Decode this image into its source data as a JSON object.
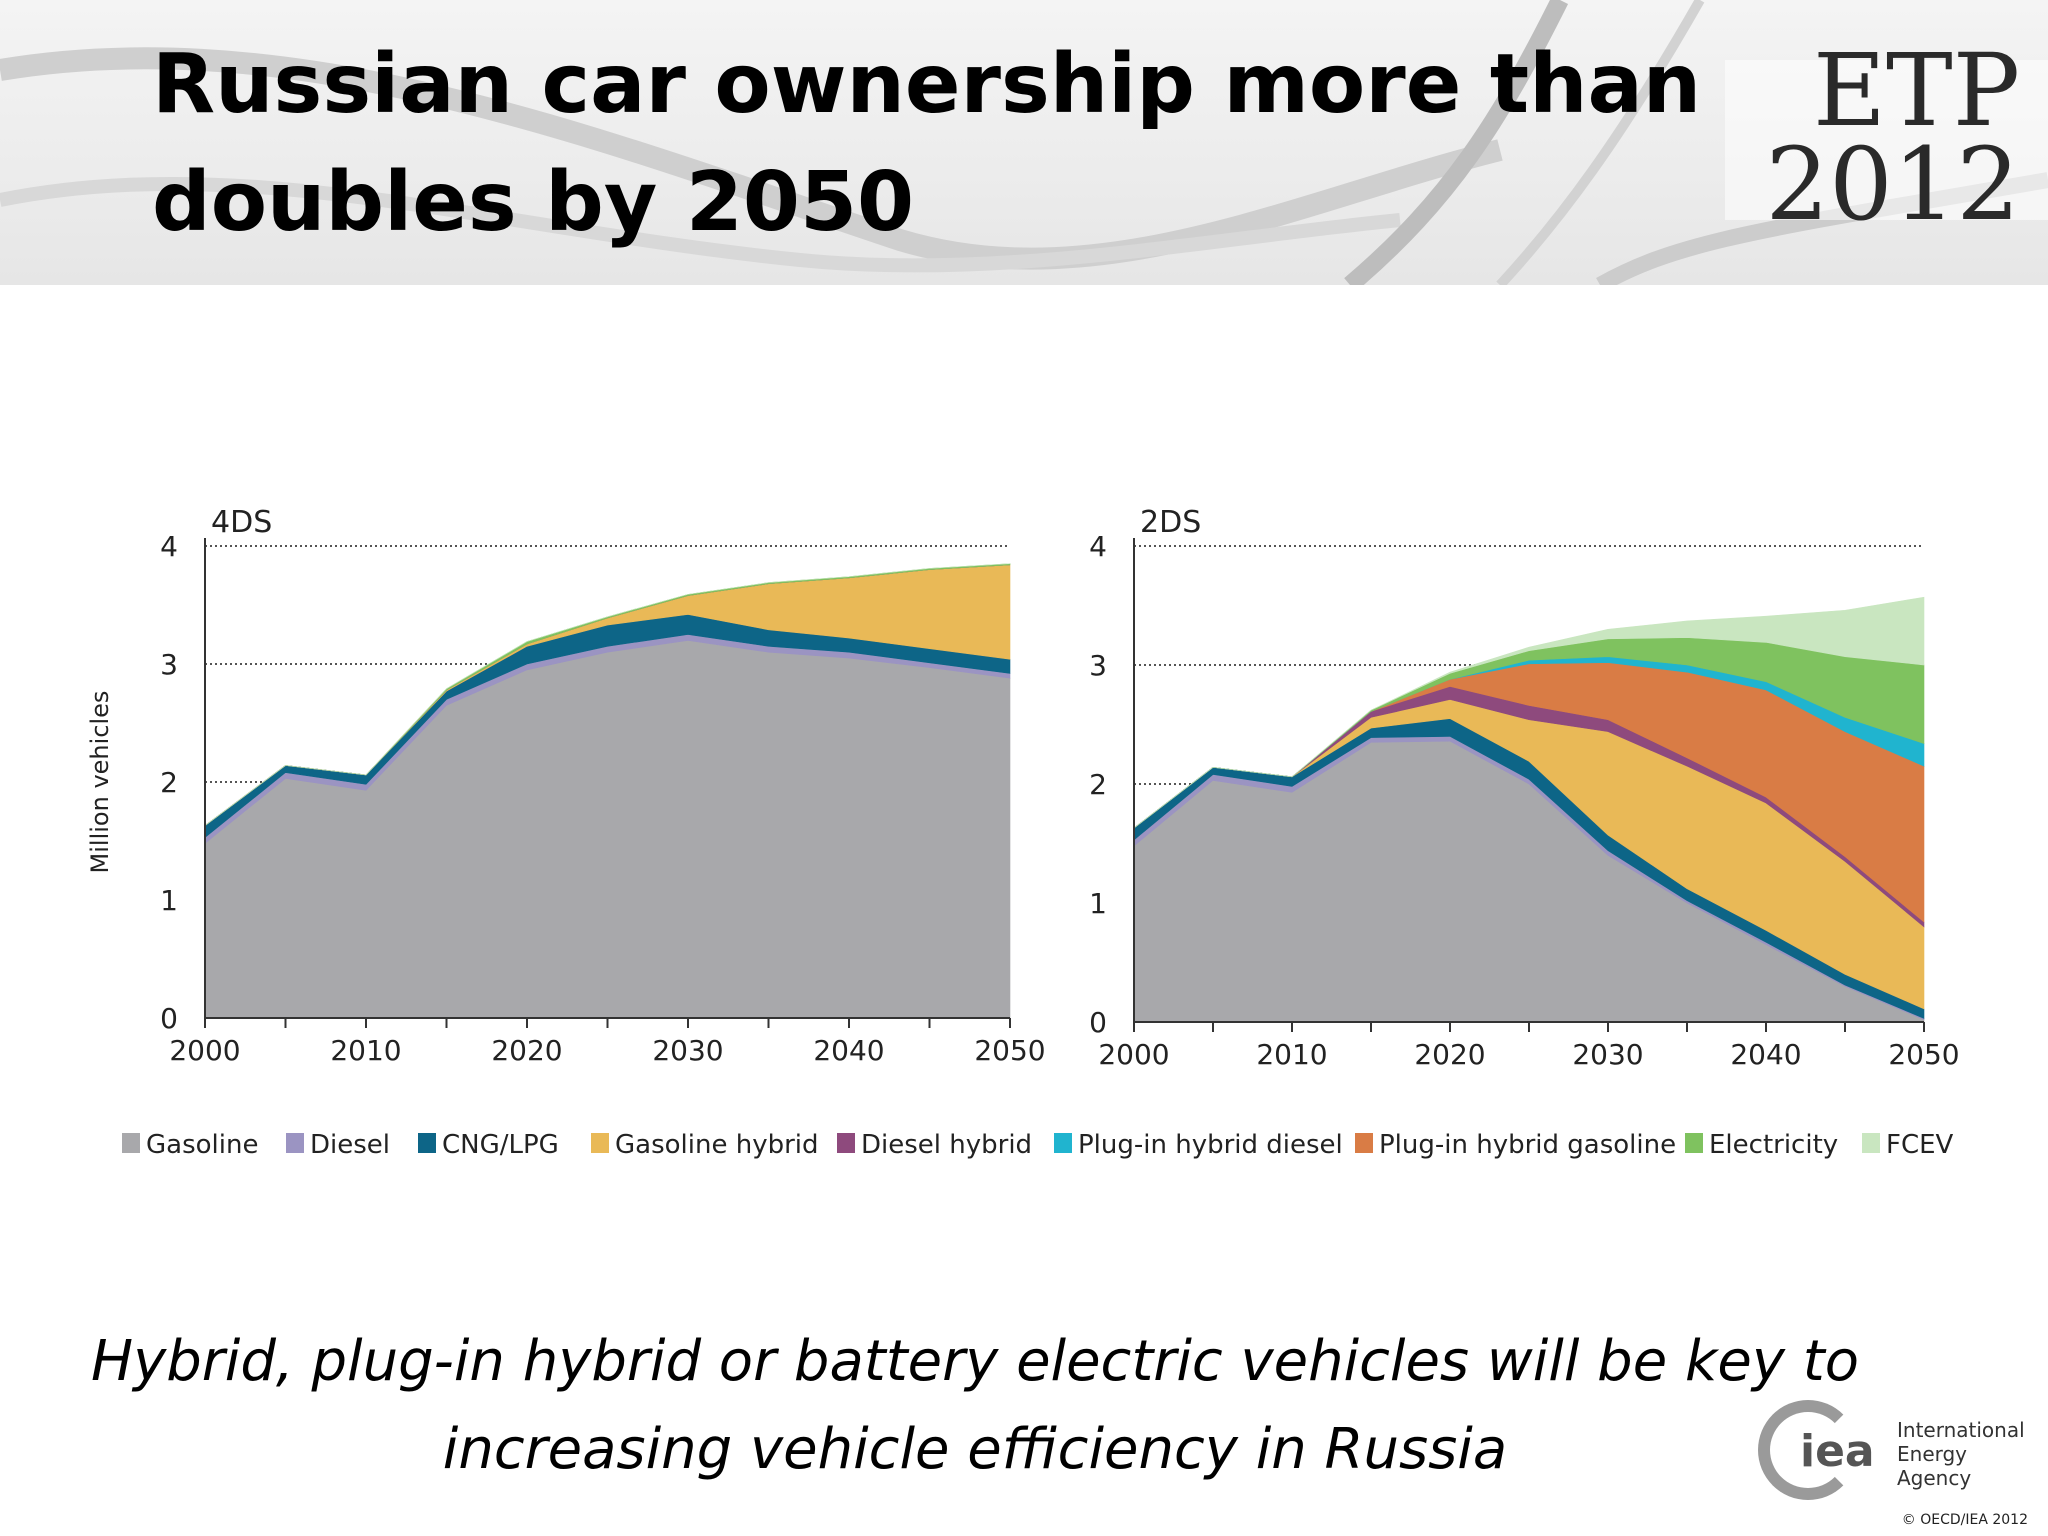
{
  "slide": {
    "title": "Russian car ownership more than doubles by 2050",
    "logo_top": "ETP",
    "logo_bottom": "2012",
    "subtitle": "Hybrid, plug-in hybrid or battery electric vehicles will be key to increasing vehicle efficiency in Russia",
    "org_short": "iea",
    "org_name": "International Energy Agency",
    "copyright": "© OECD/IEA 2012"
  },
  "chart_data": [
    {
      "type": "area",
      "stacked": true,
      "title": "4DS",
      "ylabel": "Million vehicles",
      "xlabel": "",
      "x": [
        2000,
        2005,
        2010,
        2015,
        2020,
        2025,
        2030,
        2035,
        2040,
        2045,
        2050
      ],
      "xticks": [
        "2000",
        "2010",
        "2020",
        "2030",
        "2040",
        "2050"
      ],
      "yticks": [
        "0",
        "1",
        "2",
        "3",
        "4"
      ],
      "ylim": [
        0,
        4
      ],
      "grid": "dotted horizontal at 2, 3 and 4",
      "series": [
        {
          "name": "Gasoline",
          "color": "#a8a8ab",
          "values": [
            1.48,
            2.03,
            1.93,
            2.65,
            2.95,
            3.1,
            3.2,
            3.1,
            3.05,
            2.97,
            2.88
          ]
        },
        {
          "name": "Diesel",
          "color": "#9b94c2",
          "values": [
            0.05,
            0.05,
            0.05,
            0.05,
            0.05,
            0.05,
            0.05,
            0.05,
            0.05,
            0.04,
            0.04
          ]
        },
        {
          "name": "CNG/LPG",
          "color": "#0d6587",
          "values": [
            0.1,
            0.06,
            0.08,
            0.07,
            0.15,
            0.18,
            0.17,
            0.14,
            0.12,
            0.12,
            0.12
          ]
        },
        {
          "name": "Gasoline hybrid",
          "color": "#e9b957",
          "values": [
            0.0,
            0.0,
            0.0,
            0.01,
            0.02,
            0.06,
            0.16,
            0.39,
            0.51,
            0.67,
            0.8
          ]
        },
        {
          "name": "Diesel hybrid",
          "color": "#8e4a7d",
          "values": [
            0,
            0,
            0,
            0,
            0,
            0,
            0,
            0,
            0,
            0,
            0
          ]
        },
        {
          "name": "Plug-in hybrid diesel",
          "color": "#20b4cf",
          "values": [
            0,
            0,
            0,
            0,
            0,
            0,
            0,
            0,
            0,
            0,
            0
          ]
        },
        {
          "name": "Plug-in hybrid gasoline",
          "color": "#d97c45",
          "values": [
            0,
            0,
            0,
            0,
            0,
            0,
            0,
            0,
            0,
            0,
            0
          ]
        },
        {
          "name": "Electricity",
          "color": "#7fc25f",
          "values": [
            0.0,
            0.0,
            0.0,
            0.01,
            0.02,
            0.01,
            0.01,
            0.01,
            0.01,
            0.01,
            0.01
          ]
        },
        {
          "name": "FCEV",
          "color": "#c9e6c0",
          "values": [
            0,
            0,
            0,
            0,
            0,
            0,
            0,
            0,
            0,
            0,
            0
          ]
        }
      ]
    },
    {
      "type": "area",
      "stacked": true,
      "title": "2DS",
      "ylabel": "",
      "xlabel": "",
      "x": [
        2000,
        2005,
        2010,
        2015,
        2020,
        2025,
        2030,
        2035,
        2040,
        2045,
        2050
      ],
      "xticks": [
        "2000",
        "2010",
        "2020",
        "2030",
        "2040",
        "2050"
      ],
      "yticks": [
        "0",
        "1",
        "2",
        "3",
        "4"
      ],
      "ylim": [
        0,
        4
      ],
      "grid": "dotted horizontal at 2, 3 and 4",
      "series": [
        {
          "name": "Gasoline",
          "color": "#a8a8ab",
          "values": [
            1.48,
            2.03,
            1.93,
            2.35,
            2.36,
            2.0,
            1.4,
            1.0,
            0.65,
            0.3,
            0.02
          ]
        },
        {
          "name": "Diesel",
          "color": "#9b94c2",
          "values": [
            0.05,
            0.05,
            0.05,
            0.04,
            0.04,
            0.04,
            0.04,
            0.02,
            0.02,
            0.01,
            0.01
          ]
        },
        {
          "name": "CNG/LPG",
          "color": "#0d6587",
          "values": [
            0.1,
            0.06,
            0.08,
            0.08,
            0.15,
            0.15,
            0.13,
            0.1,
            0.1,
            0.09,
            0.08
          ]
        },
        {
          "name": "Gasoline hybrid",
          "color": "#e9b957",
          "values": [
            0.0,
            0.0,
            0.0,
            0.09,
            0.16,
            0.35,
            0.87,
            1.03,
            1.07,
            0.95,
            0.69
          ]
        },
        {
          "name": "Diesel hybrid",
          "color": "#8e4a7d",
          "values": [
            0.0,
            0.0,
            0.0,
            0.05,
            0.11,
            0.12,
            0.1,
            0.07,
            0.05,
            0.04,
            0.04
          ]
        },
        {
          "name": "Plug-in hybrid gasoline",
          "color": "#d97c45",
          "values": [
            0.0,
            0.0,
            0.0,
            0.0,
            0.06,
            0.35,
            0.48,
            0.72,
            0.9,
            1.05,
            1.31
          ]
        },
        {
          "name": "Plug-in hybrid diesel",
          "color": "#20b4cf",
          "values": [
            0.0,
            0.0,
            0.0,
            0.0,
            0.0,
            0.03,
            0.05,
            0.06,
            0.07,
            0.12,
            0.19
          ]
        },
        {
          "name": "Electricity",
          "color": "#7fc25f",
          "values": [
            0.0,
            0.0,
            0.0,
            0.01,
            0.05,
            0.08,
            0.15,
            0.23,
            0.33,
            0.51,
            0.66
          ]
        },
        {
          "name": "FCEV",
          "color": "#c9e6c0",
          "values": [
            0.0,
            0.0,
            0.0,
            0.0,
            0.01,
            0.03,
            0.08,
            0.14,
            0.22,
            0.39,
            0.57
          ]
        }
      ]
    }
  ],
  "legend": {
    "placement": "bottom",
    "items": [
      {
        "label": "Gasoline",
        "color": "#a8a8ab"
      },
      {
        "label": "Diesel",
        "color": "#9b94c2"
      },
      {
        "label": "CNG/LPG",
        "color": "#0d6587"
      },
      {
        "label": "Gasoline hybrid",
        "color": "#e9b957"
      },
      {
        "label": "Diesel hybrid",
        "color": "#8e4a7d"
      },
      {
        "label": "Plug-in hybrid diesel",
        "color": "#20b4cf"
      },
      {
        "label": "Plug-in hybrid gasoline",
        "color": "#d97c45"
      },
      {
        "label": "Electricity",
        "color": "#7fc25f"
      },
      {
        "label": "FCEV",
        "color": "#c9e6c0"
      }
    ]
  }
}
